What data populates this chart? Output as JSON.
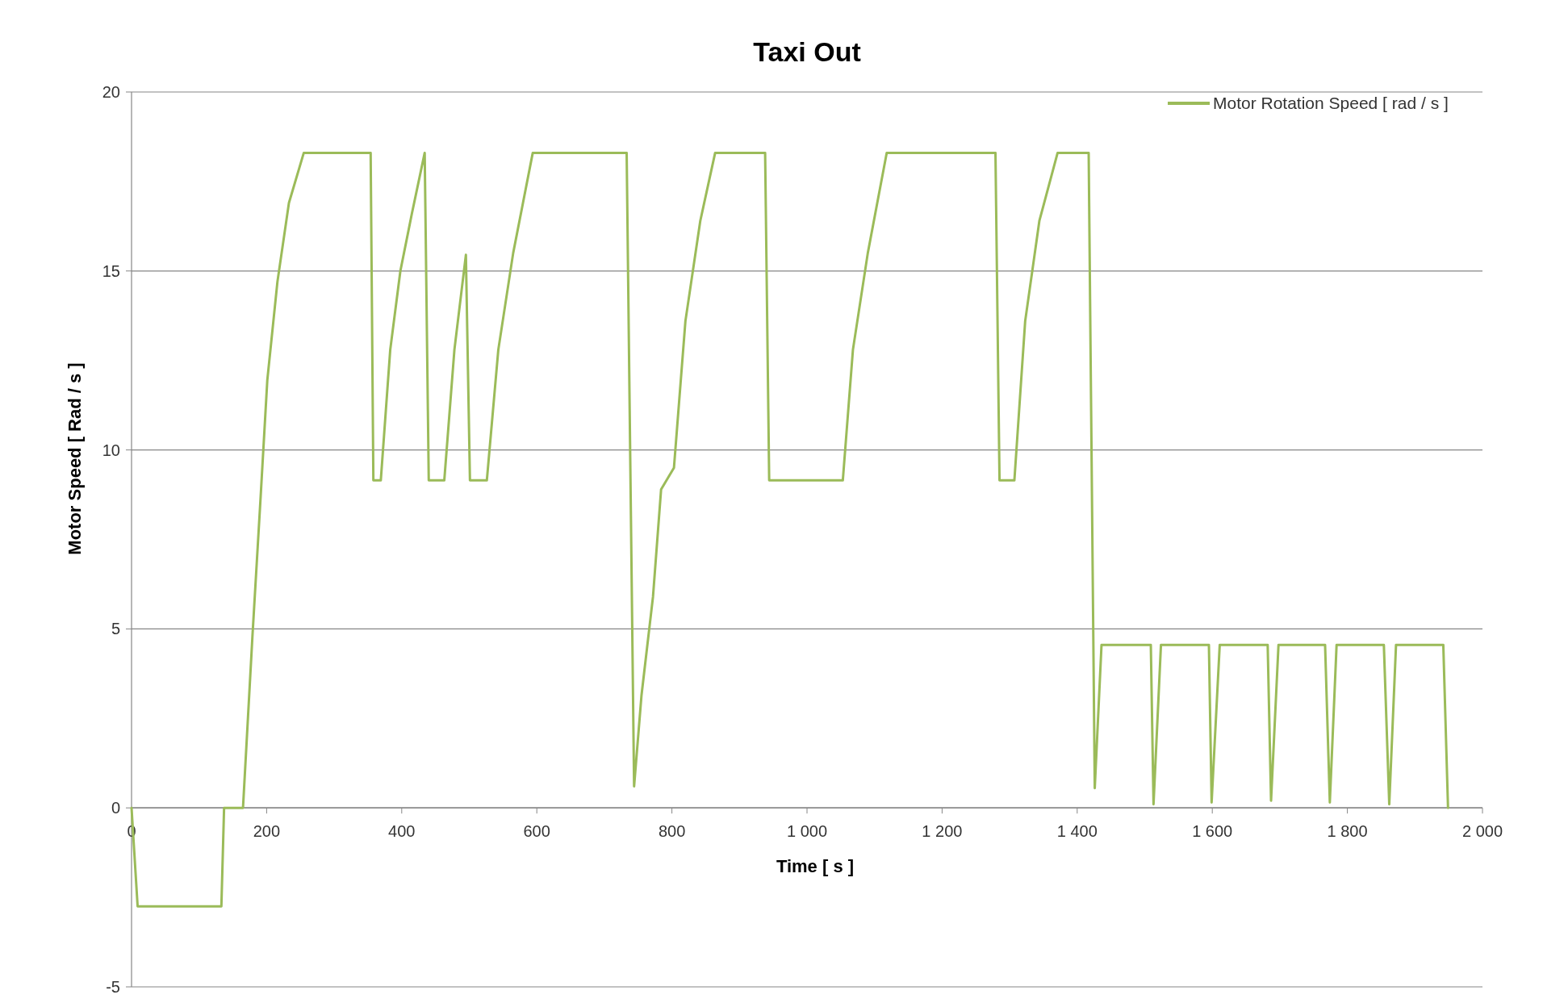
{
  "chart_data": {
    "type": "line",
    "title": "Taxi Out",
    "xlabel": "Time [ s ]",
    "ylabel": "Motor Speed [ Rad / s ]",
    "xlim": [
      0,
      2000
    ],
    "xticks": [
      0,
      {
        "value": 200,
        "label": "200"
      },
      {
        "value": 400,
        "label": "400"
      },
      {
        "value": 600,
        "label": "600"
      },
      {
        "value": 800,
        "label": "800"
      },
      {
        "value": 1000,
        "label": "1 000"
      },
      {
        "value": 1200,
        "label": "1 200"
      },
      {
        "value": 1400,
        "label": "1 400"
      },
      {
        "value": 1600,
        "label": "1 600"
      },
      {
        "value": 1800,
        "label": "1 800"
      },
      {
        "value": 2000,
        "label": "2 000"
      }
    ],
    "ylim": [
      -5,
      20
    ],
    "yticks": [
      -5,
      0,
      5,
      10,
      15,
      20
    ],
    "grid": "y",
    "legend": "top right",
    "marker": "none",
    "line_style": "solid",
    "series": [
      {
        "name": "Motor Rotation Speed [ rad / s ]",
        "color": "#9bbb59",
        "x": [
          0,
          9,
          133,
          137,
          165,
          179,
          191,
          201,
          216,
          233,
          255,
          354,
          358,
          369,
          383,
          398,
          415,
          434,
          440,
          463,
          478,
          495,
          501,
          526,
          543,
          565,
          594,
          733,
          744,
          755,
          772,
          784,
          803,
          820,
          842,
          864,
          938,
          944,
          1053,
          1068,
          1090,
          1118,
          1279,
          1285,
          1307,
          1323,
          1344,
          1371,
          1417,
          1426,
          1436,
          1509,
          1513,
          1524,
          1595,
          1599,
          1611,
          1682,
          1687,
          1698,
          1767,
          1774,
          1784,
          1854,
          1862,
          1872,
          1942,
          1949
        ],
        "values": [
          0,
          -2.75,
          -2.75,
          0,
          0,
          4.8,
          8.65,
          11.95,
          14.7,
          16.9,
          18.3,
          18.3,
          9.15,
          9.15,
          12.8,
          15,
          16.6,
          18.3,
          9.15,
          9.15,
          12.8,
          15.45,
          9.15,
          9.15,
          12.8,
          15.5,
          18.3,
          18.3,
          0.6,
          3.15,
          5.9,
          8.9,
          9.5,
          13.6,
          16.4,
          18.3,
          18.3,
          9.15,
          9.15,
          12.8,
          15.5,
          18.3,
          18.3,
          9.15,
          9.15,
          13.6,
          16.4,
          18.3,
          18.3,
          0.55,
          4.55,
          4.55,
          0.1,
          4.55,
          4.55,
          0.15,
          4.55,
          4.55,
          0.2,
          4.55,
          4.55,
          0.15,
          4.55,
          4.55,
          0.1,
          4.55,
          4.55,
          0
        ]
      }
    ]
  }
}
